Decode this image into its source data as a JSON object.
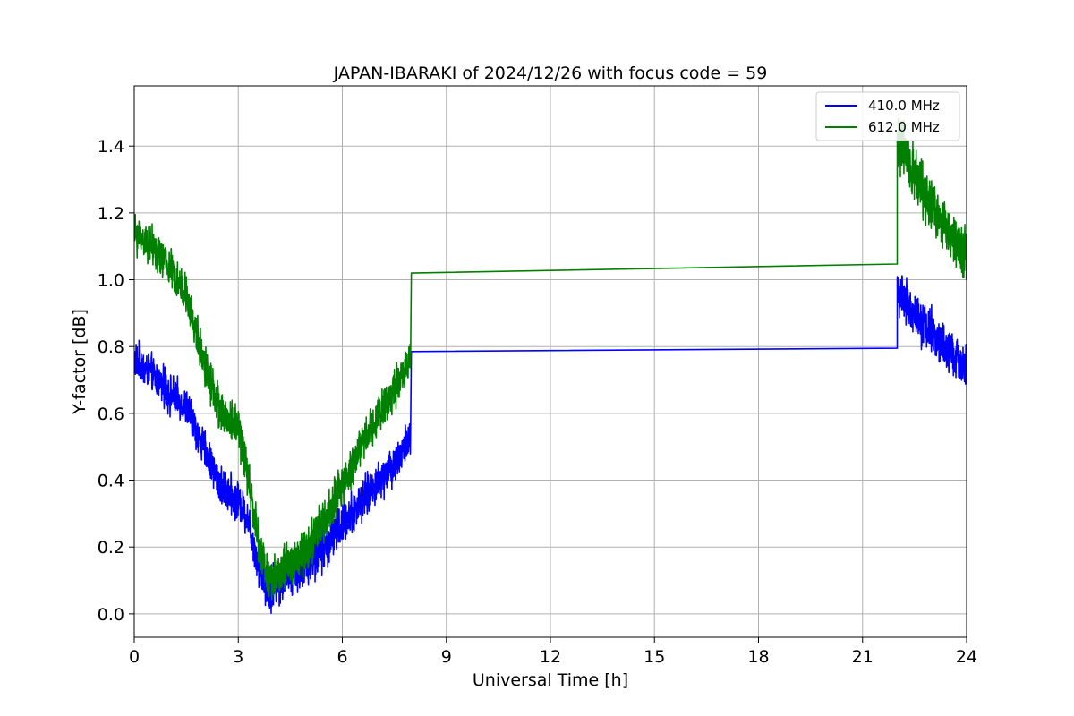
{
  "chart_data": {
    "type": "line",
    "title": "JAPAN-IBARAKI of 2024/12/26 with focus code = 59",
    "xlabel": "Universal Time [h]",
    "ylabel": "Y-factor [dB]",
    "xlim": [
      0,
      24
    ],
    "ylim": [
      -0.07,
      1.58
    ],
    "xticks": [
      0,
      3,
      6,
      9,
      12,
      15,
      18,
      21,
      24
    ],
    "yticks": [
      0.0,
      0.2,
      0.4,
      0.6,
      0.8,
      1.0,
      1.2,
      1.4
    ],
    "x_tick_labels": [
      "0",
      "3",
      "6",
      "9",
      "12",
      "15",
      "18",
      "21",
      "24"
    ],
    "y_tick_labels": [
      "0.0",
      "0.2",
      "0.4",
      "0.6",
      "0.8",
      "1.0",
      "1.2",
      "1.4"
    ],
    "grid": true,
    "legend_position": "top-right",
    "series": [
      {
        "name": "410.0 MHz",
        "color": "#0000ff",
        "points": [
          [
            0.0,
            0.76
          ],
          [
            0.5,
            0.72
          ],
          [
            1.0,
            0.66
          ],
          [
            1.5,
            0.62
          ],
          [
            2.0,
            0.5
          ],
          [
            2.5,
            0.38
          ],
          [
            3.0,
            0.34
          ],
          [
            3.3,
            0.28
          ],
          [
            3.6,
            0.14
          ],
          [
            3.9,
            0.08
          ],
          [
            4.2,
            0.1
          ],
          [
            4.5,
            0.13
          ],
          [
            5.0,
            0.15
          ],
          [
            5.5,
            0.2
          ],
          [
            6.0,
            0.27
          ],
          [
            6.5,
            0.33
          ],
          [
            7.0,
            0.39
          ],
          [
            7.5,
            0.45
          ],
          [
            7.97,
            0.53
          ],
          [
            8.0,
            0.785
          ],
          [
            22.0,
            0.795
          ],
          [
            22.05,
            0.95
          ],
          [
            22.3,
            0.92
          ],
          [
            22.7,
            0.88
          ],
          [
            23.0,
            0.84
          ],
          [
            23.5,
            0.78
          ],
          [
            24.0,
            0.74
          ]
        ],
        "noise": [
          [
            0.0,
            0.06
          ],
          [
            3.5,
            0.06
          ],
          [
            3.6,
            0.08
          ],
          [
            5.5,
            0.07
          ],
          [
            7.97,
            0.06
          ],
          [
            8.0,
            0.0
          ],
          [
            22.0,
            0.0
          ],
          [
            22.05,
            0.08
          ],
          [
            24.0,
            0.07
          ]
        ]
      },
      {
        "name": "612.0 MHz",
        "color": "#008000",
        "points": [
          [
            0.0,
            1.14
          ],
          [
            0.5,
            1.1
          ],
          [
            1.0,
            1.04
          ],
          [
            1.5,
            0.95
          ],
          [
            2.0,
            0.76
          ],
          [
            2.5,
            0.6
          ],
          [
            3.0,
            0.56
          ],
          [
            3.3,
            0.4
          ],
          [
            3.6,
            0.2
          ],
          [
            3.9,
            0.1
          ],
          [
            4.2,
            0.12
          ],
          [
            4.5,
            0.15
          ],
          [
            5.0,
            0.2
          ],
          [
            5.5,
            0.28
          ],
          [
            6.0,
            0.38
          ],
          [
            6.5,
            0.5
          ],
          [
            7.0,
            0.59
          ],
          [
            7.5,
            0.67
          ],
          [
            7.97,
            0.77
          ],
          [
            8.0,
            1.02
          ],
          [
            22.0,
            1.047
          ],
          [
            22.05,
            1.4
          ],
          [
            22.3,
            1.36
          ],
          [
            22.7,
            1.28
          ],
          [
            23.0,
            1.22
          ],
          [
            23.5,
            1.14
          ],
          [
            24.0,
            1.08
          ]
        ],
        "noise": [
          [
            0.0,
            0.06
          ],
          [
            3.5,
            0.07
          ],
          [
            3.6,
            0.07
          ],
          [
            5.5,
            0.07
          ],
          [
            7.97,
            0.06
          ],
          [
            8.0,
            0.0
          ],
          [
            22.0,
            0.0
          ],
          [
            22.05,
            0.09
          ],
          [
            24.0,
            0.08
          ]
        ]
      }
    ]
  }
}
